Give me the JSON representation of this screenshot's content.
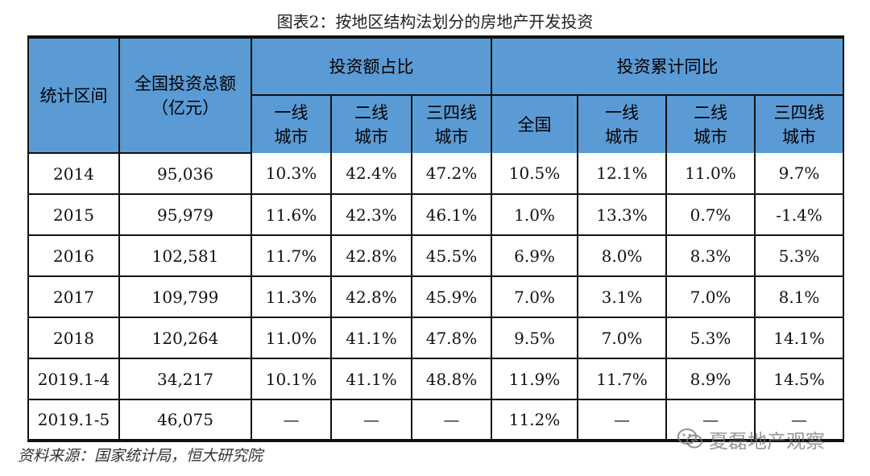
{
  "title": "图表2：按地区结构法划分的房地产开发投资",
  "table": {
    "header": {
      "period": "统计区间",
      "total_line1": "全国投资总额",
      "total_line2": "（亿元）",
      "share_group": "投资额占比",
      "growth_group": "投资累计同比",
      "share_cols": [
        {
          "l1": "一线",
          "l2": "城市"
        },
        {
          "l1": "二线",
          "l2": "城市"
        },
        {
          "l1": "三四线",
          "l2": "城市"
        }
      ],
      "growth_cols": [
        {
          "l1": "全国",
          "l2": ""
        },
        {
          "l1": "一线",
          "l2": "城市"
        },
        {
          "l1": "二线",
          "l2": "城市"
        },
        {
          "l1": "三四线",
          "l2": "城市"
        }
      ]
    },
    "rows": [
      {
        "cells": [
          "2014",
          "95,036",
          "10.3%",
          "42.4%",
          "47.2%",
          "10.5%",
          "12.1%",
          "11.0%",
          "9.7%"
        ]
      },
      {
        "cells": [
          "2015",
          "95,979",
          "11.6%",
          "42.3%",
          "46.1%",
          "1.0%",
          "13.3%",
          "0.7%",
          "-1.4%"
        ]
      },
      {
        "cells": [
          "2016",
          "102,581",
          "11.7%",
          "42.8%",
          "45.5%",
          "6.9%",
          "8.0%",
          "8.3%",
          "5.3%"
        ]
      },
      {
        "cells": [
          "2017",
          "109,799",
          "11.3%",
          "42.8%",
          "45.9%",
          "7.0%",
          "3.1%",
          "7.0%",
          "8.1%"
        ]
      },
      {
        "cells": [
          "2018",
          "120,264",
          "11.0%",
          "41.1%",
          "47.8%",
          "9.5%",
          "7.0%",
          "5.3%",
          "14.1%"
        ]
      },
      {
        "cells": [
          "2019.1-4",
          "34,217",
          "10.1%",
          "41.1%",
          "48.8%",
          "11.9%",
          "11.7%",
          "8.9%",
          "14.5%"
        ]
      },
      {
        "cells": [
          "2019.1-5",
          "46,075",
          "—",
          "—",
          "—",
          "11.2%",
          "—",
          "—",
          "—"
        ]
      }
    ]
  },
  "source": "资料来源：国家统计局，恒大研究院",
  "watermark": {
    "text": "夏磊地产观察",
    "icon": "wechat-icon"
  }
}
